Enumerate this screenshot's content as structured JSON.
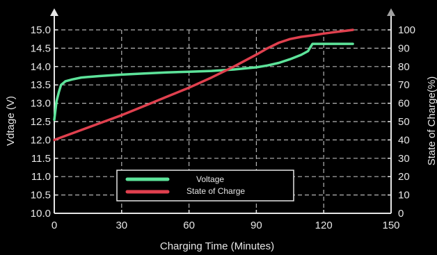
{
  "chart_data": {
    "type": "line",
    "title": "",
    "xlabel": "Charging Time (Minutes)",
    "ylabel": "Vdtage (V)",
    "y2label": "State of Charge(%)",
    "xlim": [
      0,
      150
    ],
    "ylim": [
      10.0,
      15.0
    ],
    "y2lim": [
      0,
      100
    ],
    "xticks": [
      "0",
      "30",
      "60",
      "90",
      "120",
      "150"
    ],
    "yticks": [
      "10.0",
      "10.5",
      "11.0",
      "11.5",
      "12.0",
      "12.5",
      "13.0",
      "13.5",
      "14.0",
      "14.5",
      "15.0"
    ],
    "y2ticks": [
      "0",
      "10",
      "20",
      "30",
      "40",
      "50",
      "60",
      "70",
      "80",
      "90",
      "100"
    ],
    "grid": true,
    "legend_position": "bottom-center",
    "colors": {
      "voltage": "#5de39a",
      "soc": "#e0404e",
      "grid": "#b4b4b4",
      "axis": "#e6e6e6"
    },
    "series": [
      {
        "name": "Voltage",
        "axis": "left",
        "x": [
          0,
          1,
          2,
          3,
          4,
          5,
          8,
          12,
          20,
          30,
          40,
          50,
          60,
          70,
          80,
          90,
          95,
          100,
          105,
          110,
          113,
          115,
          120,
          125,
          133
        ],
        "values": [
          12.55,
          13.05,
          13.3,
          13.5,
          13.55,
          13.6,
          13.65,
          13.7,
          13.74,
          13.78,
          13.81,
          13.84,
          13.86,
          13.88,
          13.92,
          13.98,
          14.03,
          14.1,
          14.2,
          14.32,
          14.42,
          14.62,
          14.62,
          14.62,
          14.62
        ]
      },
      {
        "name": "State of Charge",
        "axis": "right",
        "x": [
          0,
          10,
          20,
          30,
          40,
          50,
          60,
          70,
          80,
          90,
          95,
          100,
          105,
          110,
          115,
          120,
          125,
          130,
          133
        ],
        "values": [
          40,
          44.5,
          49,
          53.5,
          58.5,
          63.5,
          68.5,
          74,
          80,
          86.5,
          90,
          93,
          95,
          96.2,
          97,
          98,
          98.8,
          99.5,
          100
        ]
      }
    ]
  }
}
